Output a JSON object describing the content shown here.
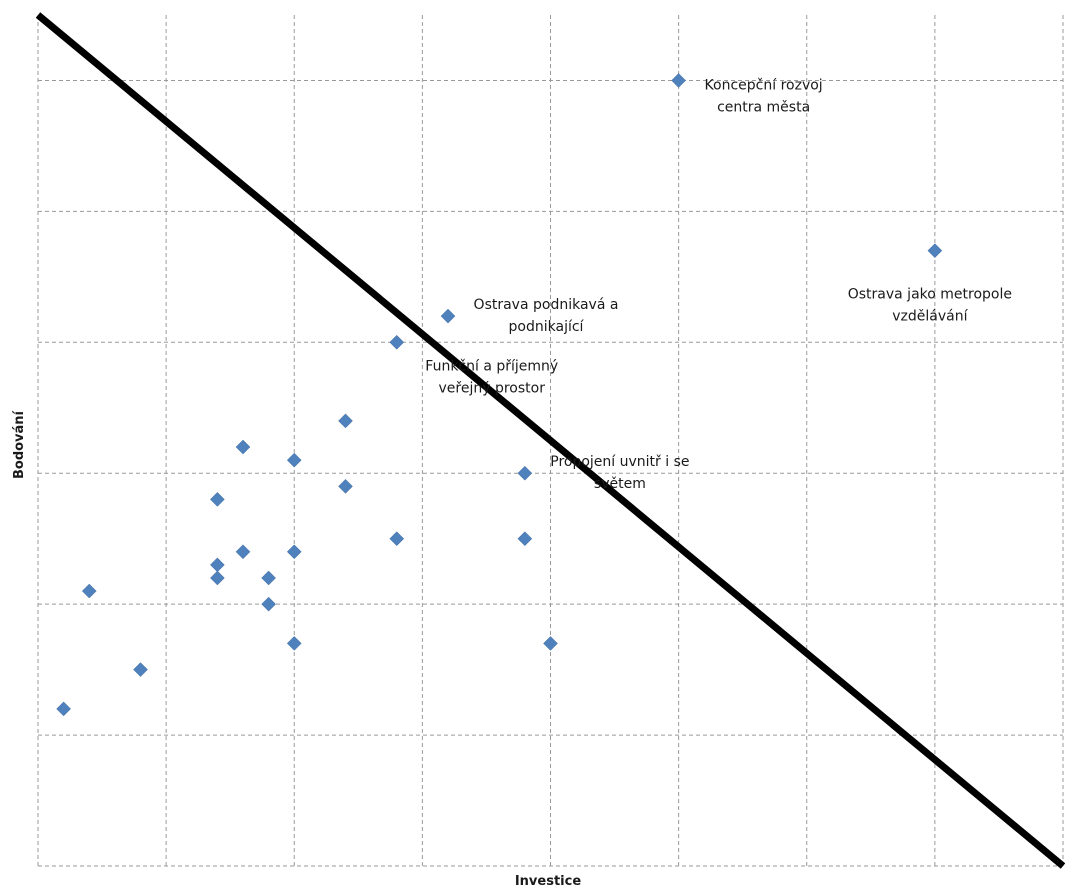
{
  "chart_data": {
    "type": "scatter",
    "xlabel": "Investice",
    "ylabel": "Bodování",
    "xlim": [
      0,
      8
    ],
    "ylim": [
      0,
      6.5
    ],
    "grid": true,
    "legend": "none",
    "points_color": "#4f81bd",
    "trend_line_color": "#000000",
    "points": [
      {
        "x": 0.2,
        "y": 1.2
      },
      {
        "x": 0.4,
        "y": 2.1
      },
      {
        "x": 0.8,
        "y": 1.5
      },
      {
        "x": 1.4,
        "y": 2.2
      },
      {
        "x": 1.4,
        "y": 2.3
      },
      {
        "x": 1.4,
        "y": 2.8
      },
      {
        "x": 1.6,
        "y": 2.4
      },
      {
        "x": 1.6,
        "y": 3.2
      },
      {
        "x": 1.8,
        "y": 2.0
      },
      {
        "x": 1.8,
        "y": 2.2
      },
      {
        "x": 2.0,
        "y": 1.7
      },
      {
        "x": 2.0,
        "y": 2.4
      },
      {
        "x": 2.0,
        "y": 3.1
      },
      {
        "x": 2.4,
        "y": 2.9
      },
      {
        "x": 2.4,
        "y": 3.4
      },
      {
        "x": 2.8,
        "y": 2.5
      },
      {
        "x": 2.8,
        "y": 4.0
      },
      {
        "x": 3.2,
        "y": 4.2
      },
      {
        "x": 3.8,
        "y": 2.5
      },
      {
        "x": 3.8,
        "y": 3.0
      },
      {
        "x": 4.0,
        "y": 1.7
      },
      {
        "x": 5.0,
        "y": 6.0
      },
      {
        "x": 7.0,
        "y": 4.7
      }
    ],
    "annotations": [
      {
        "lines": [
          "Koncepční rozvoj",
          "centra města"
        ],
        "x": 5.0,
        "y": 6.0
      },
      {
        "lines": [
          "Ostrava jako metropole",
          "vzdělávání"
        ],
        "x": 7.0,
        "y": 4.7
      },
      {
        "lines": [
          "Ostrava podnikavá a",
          "podnikající"
        ],
        "x": 3.2,
        "y": 4.2
      },
      {
        "lines": [
          "Funkční a příjemný",
          "veřejný prostor"
        ],
        "x": 2.8,
        "y": 4.0
      },
      {
        "lines": [
          "Propojení uvnitř i se",
          "světem"
        ],
        "x": 3.8,
        "y": 3.0
      }
    ],
    "trend_line": {
      "x": [
        0,
        8
      ],
      "y": [
        6.5,
        0
      ]
    }
  }
}
